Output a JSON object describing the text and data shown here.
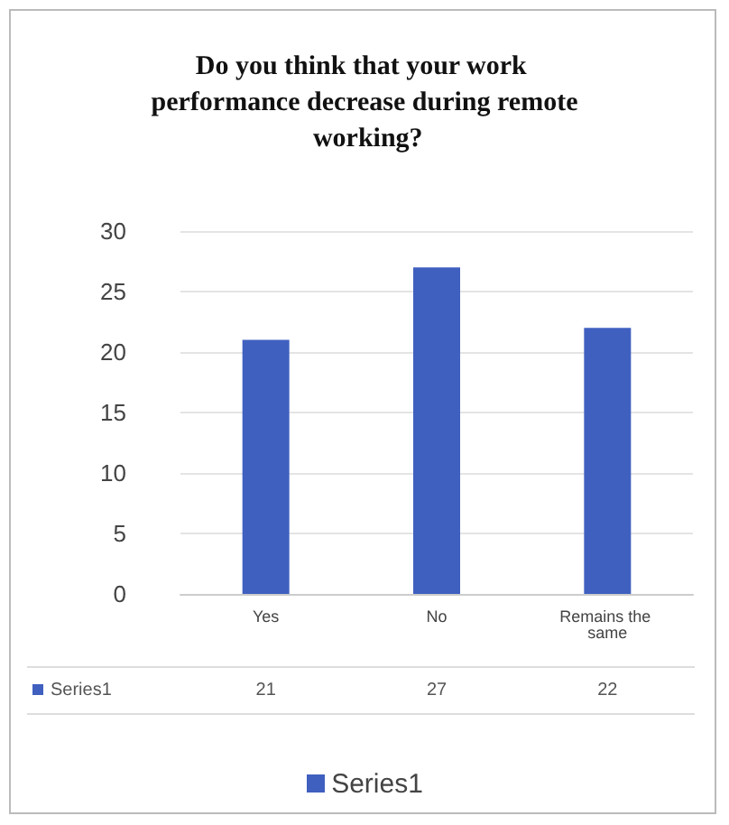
{
  "chart_data": {
    "type": "bar",
    "title": "Do you think that your work performance decrease during remote working?",
    "categories": [
      "Yes",
      "No",
      "Remains the same"
    ],
    "series": [
      {
        "name": "Series1",
        "color": "#4060c0",
        "values": [
          21,
          27,
          22
        ]
      }
    ],
    "ylim": [
      0,
      30
    ],
    "yticks": [
      0,
      5,
      10,
      15,
      20,
      25,
      30
    ],
    "grid": "y",
    "legend": "bottom",
    "data_labels": true
  }
}
